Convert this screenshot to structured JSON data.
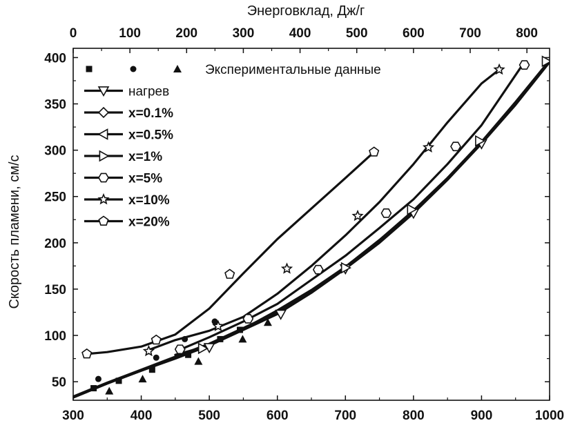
{
  "chart_data": {
    "type": "line",
    "title": "",
    "xlabel": "",
    "ylabel": "Скорость пламени, см/с",
    "x2label": "Энерговклад, Дж/г",
    "xlim": [
      300,
      1000
    ],
    "ylim": [
      30,
      410
    ],
    "x2lim": [
      0,
      840
    ],
    "x_ticks": [
      300,
      400,
      500,
      600,
      700,
      800,
      900,
      1000
    ],
    "y_ticks": [
      50,
      100,
      150,
      200,
      250,
      300,
      350,
      400
    ],
    "x2_ticks": [
      0,
      100,
      200,
      300,
      400,
      500,
      600,
      700,
      800
    ],
    "grid": false,
    "legend_placement": "top-left",
    "series": [
      {
        "name": "нагрев",
        "marker": "triangle-down",
        "weight": "normal",
        "x": [
          300,
          350,
          400,
          450,
          500,
          550,
          600,
          650,
          700,
          750,
          800,
          850,
          900,
          950,
          1000
        ],
        "y": [
          33,
          48,
          62,
          75,
          89,
          106,
          123,
          146,
          172,
          200,
          232,
          268,
          307,
          349,
          395
        ],
        "markers_x": [
          500,
          605,
          700,
          800,
          900
        ],
        "markers_y": [
          87,
          123,
          172,
          232,
          307
        ]
      },
      {
        "name": "x=0.1%",
        "marker": "diamond",
        "weight": "normal",
        "x": [
          300,
          350,
          400,
          450,
          500,
          550,
          600,
          650,
          700,
          750,
          800,
          850,
          900,
          950,
          1000
        ],
        "y": [
          33,
          48,
          62,
          76,
          90,
          107,
          124,
          147,
          173,
          201,
          233,
          269,
          308,
          350,
          396
        ],
        "markers_x": [],
        "markers_y": []
      },
      {
        "name": "x=0.5%",
        "marker": "triangle-left",
        "weight": "normal",
        "x": [
          300,
          350,
          400,
          450,
          500,
          550,
          600,
          650,
          700,
          750,
          800,
          850,
          900,
          950,
          1000
        ],
        "y": [
          34,
          49,
          63,
          77,
          91,
          108,
          125,
          148,
          174,
          203,
          235,
          270,
          309,
          352,
          397
        ],
        "markers_x": [],
        "markers_y": []
      },
      {
        "name": "x=1%",
        "marker": "triangle-right",
        "weight": "normal",
        "x": [
          450,
          500,
          550,
          600,
          650,
          700,
          750,
          800,
          850,
          900,
          950,
          1000
        ],
        "y": [
          79,
          89,
          107,
          127,
          149,
          174,
          203,
          234,
          269,
          309,
          351,
          397
        ],
        "markers_x": [
          490,
          700,
          797,
          897,
          995
        ],
        "markers_y": [
          86,
          173,
          236,
          310,
          396
        ]
      },
      {
        "name": "x=5%",
        "marker": "hexagon",
        "weight": "normal",
        "x": [
          455,
          500,
          550,
          600,
          650,
          700,
          750,
          800,
          850,
          900,
          960
        ],
        "y": [
          84,
          98,
          115,
          134,
          160,
          186,
          216,
          247,
          285,
          327,
          392
        ],
        "markers_x": [
          457,
          557,
          660,
          760,
          862,
          963
        ],
        "markers_y": [
          85,
          118,
          171,
          232,
          304,
          392
        ]
      },
      {
        "name": "x=10%",
        "marker": "star",
        "weight": "normal",
        "x": [
          410,
          450,
          500,
          550,
          600,
          650,
          700,
          750,
          800,
          850,
          900,
          926
        ],
        "y": [
          84,
          95,
          105,
          120,
          145,
          175,
          208,
          244,
          285,
          330,
          372,
          387
        ],
        "markers_x": [
          411,
          513,
          614,
          718,
          822,
          926
        ],
        "markers_y": [
          83,
          110,
          172,
          229,
          303,
          387
        ]
      },
      {
        "name": "x=20%",
        "marker": "pentagon",
        "weight": "normal",
        "x": [
          320,
          350,
          400,
          450,
          500,
          550,
          600,
          650,
          700,
          742
        ],
        "y": [
          80,
          82,
          88,
          101,
          129,
          167,
          204,
          237,
          270,
          298
        ],
        "markers_x": [
          320,
          422,
          530,
          742
        ],
        "markers_y": [
          80,
          95,
          166,
          298
        ]
      }
    ],
    "experimental": {
      "label": "Экспериментальные данные",
      "squares": {
        "x": [
          330,
          367,
          416,
          469,
          516,
          545
        ],
        "y": [
          43,
          51,
          63,
          79,
          96,
          106
        ]
      },
      "circles": {
        "x": [
          337,
          422,
          464,
          508
        ],
        "y": [
          53,
          76,
          96,
          115
        ]
      },
      "triangles": {
        "x": [
          353,
          402,
          484,
          549,
          586
        ],
        "y": [
          40,
          53,
          72,
          96,
          114
        ]
      }
    }
  }
}
